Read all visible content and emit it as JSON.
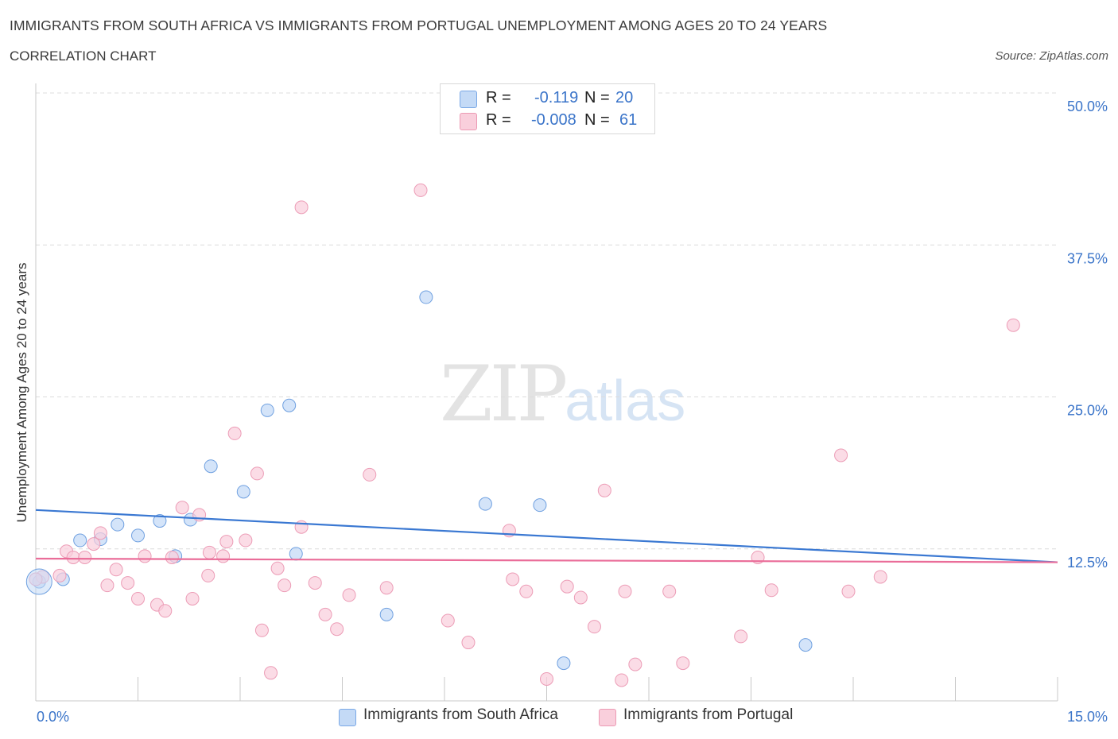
{
  "header": {
    "title": "IMMIGRANTS FROM SOUTH AFRICA VS IMMIGRANTS FROM PORTUGAL UNEMPLOYMENT AMONG AGES 20 TO 24 YEARS",
    "subtitle": "CORRELATION CHART",
    "source": "Source: ZipAtlas.com"
  },
  "watermark": {
    "main": "ZIP",
    "accent": "atlas"
  },
  "legend": {
    "series": [
      {
        "r_label": "R =",
        "r_value": "-0.119",
        "n_label": "N =",
        "n_value": "20",
        "color": "#b8d3f5",
        "border": "#7aa8e6"
      },
      {
        "r_label": "R =",
        "r_value": "-0.008",
        "n_label": "N =",
        "n_value": "61",
        "color": "#f8c6d6",
        "border": "#ec9ab4"
      }
    ]
  },
  "bottom_legend": {
    "south_africa": "Immigrants from South Africa",
    "portugal": "Immigrants from Portugal"
  },
  "colors": {
    "blue_fill": "#c4daf6",
    "blue_stroke": "#6fa0e0",
    "blue_line": "#3a78d2",
    "pink_fill": "#f9cfdc",
    "pink_stroke": "#ec9cb6",
    "pink_line": "#ea6d99",
    "tick_label": "#3a74c9"
  },
  "chart_data": {
    "type": "scatter",
    "title": "IMMIGRANTS FROM SOUTH AFRICA VS IMMIGRANTS FROM PORTUGAL UNEMPLOYMENT AMONG AGES 20 TO 24 YEARS",
    "subtitle": "CORRELATION CHART",
    "xlabel": "",
    "ylabel": "Unemployment Among Ages 20 to 24 years",
    "xlim": [
      0,
      15
    ],
    "ylim": [
      0,
      50
    ],
    "x_tick_labels": [
      "0.0%",
      "15.0%"
    ],
    "y_ticks": [
      12.5,
      25.0,
      37.5,
      50.0
    ],
    "y_tick_labels": [
      "12.5%",
      "25.0%",
      "37.5%",
      "50.0%"
    ],
    "grid": "horizontal dashed",
    "series": [
      {
        "name": "Immigrants from South Africa",
        "color": "#6fa0e0",
        "points": [
          [
            0.05,
            9.8
          ],
          [
            0.4,
            10.0
          ],
          [
            0.65,
            13.2
          ],
          [
            0.95,
            13.3
          ],
          [
            1.2,
            14.5
          ],
          [
            1.5,
            13.6
          ],
          [
            1.82,
            14.8
          ],
          [
            2.05,
            11.9
          ],
          [
            2.27,
            14.9
          ],
          [
            2.57,
            19.3
          ],
          [
            3.05,
            17.2
          ],
          [
            3.4,
            23.9
          ],
          [
            3.72,
            24.3
          ],
          [
            3.82,
            12.1
          ],
          [
            5.73,
            33.2
          ],
          [
            5.15,
            7.1
          ],
          [
            6.6,
            16.2
          ],
          [
            7.4,
            16.1
          ],
          [
            7.75,
            3.1
          ],
          [
            11.3,
            4.6
          ]
        ],
        "trend": {
          "x": [
            0,
            15
          ],
          "y": [
            15.7,
            11.4
          ]
        }
      },
      {
        "name": "Immigrants from Portugal",
        "color": "#ec9cb6",
        "points": [
          [
            0.1,
            10.2
          ],
          [
            0.35,
            10.3
          ],
          [
            0.45,
            12.3
          ],
          [
            0.55,
            11.8
          ],
          [
            0.72,
            11.8
          ],
          [
            0.85,
            12.9
          ],
          [
            0.95,
            13.8
          ],
          [
            1.05,
            9.5
          ],
          [
            1.18,
            10.8
          ],
          [
            1.35,
            9.7
          ],
          [
            1.5,
            8.4
          ],
          [
            1.6,
            11.9
          ],
          [
            1.78,
            7.9
          ],
          [
            1.9,
            7.4
          ],
          [
            2.0,
            11.8
          ],
          [
            2.15,
            15.9
          ],
          [
            2.3,
            8.4
          ],
          [
            2.4,
            15.3
          ],
          [
            2.53,
            10.3
          ],
          [
            2.55,
            12.2
          ],
          [
            2.75,
            11.9
          ],
          [
            2.8,
            13.1
          ],
          [
            2.92,
            22.0
          ],
          [
            3.08,
            13.2
          ],
          [
            3.25,
            18.7
          ],
          [
            3.32,
            5.8
          ],
          [
            3.45,
            2.3
          ],
          [
            3.55,
            10.9
          ],
          [
            3.65,
            9.5
          ],
          [
            3.9,
            14.3
          ],
          [
            3.9,
            40.6
          ],
          [
            4.1,
            9.7
          ],
          [
            4.25,
            7.1
          ],
          [
            4.42,
            5.9
          ],
          [
            4.6,
            8.7
          ],
          [
            4.9,
            18.6
          ],
          [
            5.15,
            9.3
          ],
          [
            5.65,
            42.0
          ],
          [
            6.05,
            6.6
          ],
          [
            6.35,
            4.8
          ],
          [
            6.95,
            14.0
          ],
          [
            7.0,
            10.0
          ],
          [
            7.2,
            9.0
          ],
          [
            7.5,
            1.8
          ],
          [
            7.8,
            9.4
          ],
          [
            8.0,
            8.5
          ],
          [
            8.2,
            6.1
          ],
          [
            8.35,
            17.3
          ],
          [
            8.6,
            1.7
          ],
          [
            8.8,
            3.0
          ],
          [
            8.65,
            9.0
          ],
          [
            9.5,
            3.1
          ],
          [
            9.3,
            9.0
          ],
          [
            10.35,
            5.3
          ],
          [
            10.6,
            11.8
          ],
          [
            10.8,
            9.1
          ],
          [
            11.82,
            20.2
          ],
          [
            11.93,
            9.0
          ],
          [
            12.4,
            10.2
          ],
          [
            14.35,
            30.9
          ],
          [
            0.0,
            10.0
          ]
        ],
        "trend": {
          "x": [
            0,
            15
          ],
          "y": [
            11.7,
            11.4
          ]
        }
      }
    ]
  }
}
